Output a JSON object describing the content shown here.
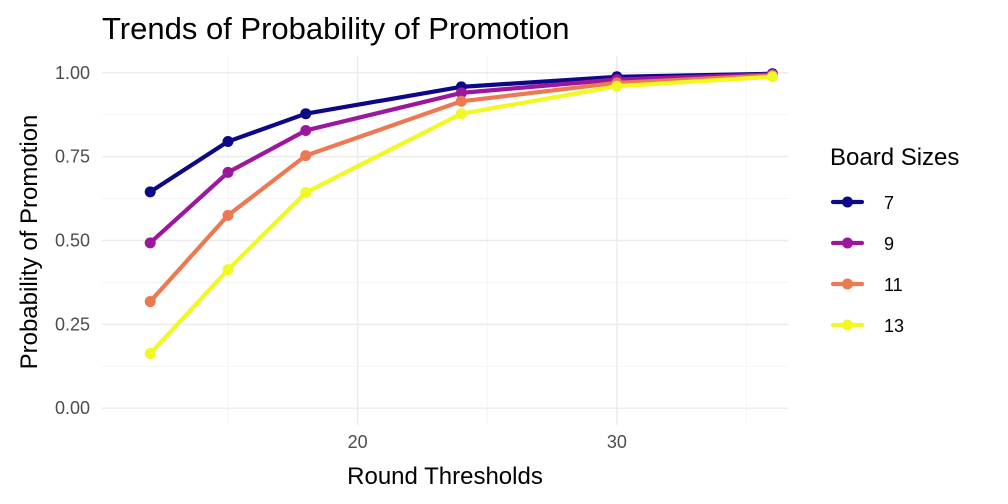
{
  "chart_data": {
    "type": "line",
    "title": "Trends of Probability of Promotion",
    "xlabel": "Round Thresholds",
    "ylabel": "Probability of Promotion",
    "x": [
      12,
      15,
      18,
      24,
      30,
      36
    ],
    "xlim": [
      10.14,
      36.6
    ],
    "ylim": [
      -0.05,
      1.05
    ],
    "x_ticks": [
      20,
      30
    ],
    "y_ticks": [
      0.0,
      0.25,
      0.5,
      0.75,
      1.0
    ],
    "x_tick_labels": [
      "20",
      "30"
    ],
    "y_tick_labels": [
      "0.00",
      "0.25",
      "0.50",
      "0.75",
      "1.00"
    ],
    "grid": true,
    "legend": {
      "title": "Board Sizes",
      "position": "right"
    },
    "series": [
      {
        "name": "7",
        "color": "#0d0887",
        "values": [
          0.645,
          0.795,
          0.878,
          0.958,
          0.988,
          0.997
        ]
      },
      {
        "name": "9",
        "color": "#9c179e",
        "values": [
          0.493,
          0.703,
          0.828,
          0.94,
          0.98,
          0.995
        ]
      },
      {
        "name": "11",
        "color": "#ed7953",
        "values": [
          0.318,
          0.575,
          0.753,
          0.915,
          0.97,
          0.992
        ]
      },
      {
        "name": "13",
        "color": "#f0f921",
        "values": [
          0.163,
          0.413,
          0.643,
          0.878,
          0.96,
          0.988
        ]
      }
    ]
  }
}
